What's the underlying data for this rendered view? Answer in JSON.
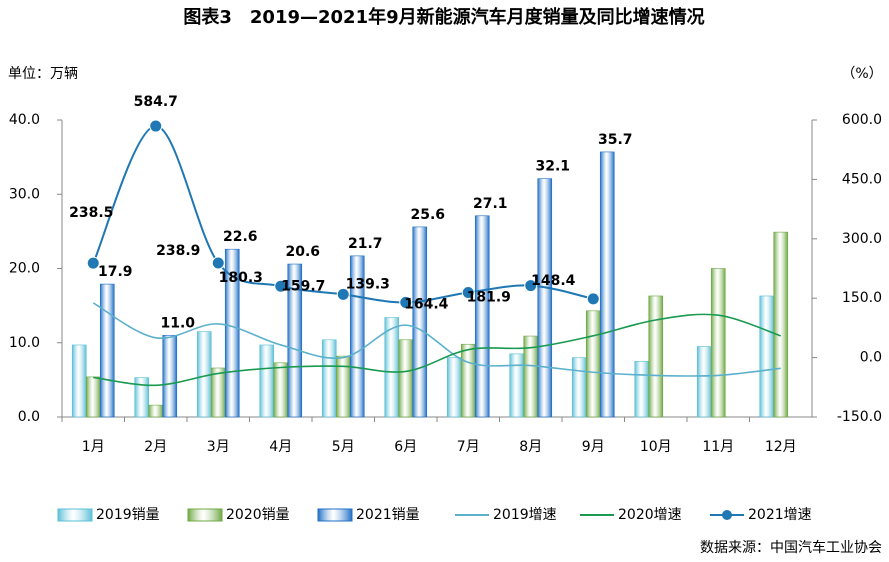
{
  "chart_data": {
    "type": "bar-line",
    "title": "图表3　2019—2021年9月新能源汽车月度销量及同比增速情况",
    "y_label": "单位：万辆",
    "y2_label": "（%）",
    "source": "数据来源：中国汽车工业协会",
    "categories": [
      "1月",
      "2月",
      "3月",
      "4月",
      "5月",
      "6月",
      "7月",
      "8月",
      "9月",
      "10月",
      "11月",
      "12月"
    ],
    "ylim": [
      0,
      40
    ],
    "yticks": [
      {
        "value": 0,
        "label": "0.0"
      },
      {
        "value": 10,
        "label": "10.0"
      },
      {
        "value": 20,
        "label": "20.0"
      },
      {
        "value": 30,
        "label": "30.0"
      },
      {
        "value": 40,
        "label": "40.0"
      }
    ],
    "y2lim": [
      -150,
      600
    ],
    "y2ticks": [
      {
        "value": -150,
        "label": "-150.0"
      },
      {
        "value": 0,
        "label": "0.0"
      },
      {
        "value": 150,
        "label": "150.0"
      },
      {
        "value": 300,
        "label": "300.0"
      },
      {
        "value": 450,
        "label": "450.0"
      },
      {
        "value": 600,
        "label": "600.0"
      }
    ],
    "series": [
      {
        "name": "2019销量",
        "kind": "bar",
        "color": "#5bbfd6",
        "values": [
          9.7,
          5.3,
          11.5,
          9.7,
          10.4,
          13.4,
          8.0,
          8.5,
          8.0,
          7.5,
          9.5,
          16.3
        ]
      },
      {
        "name": "2020销量",
        "kind": "bar",
        "color": "#6fa843",
        "values": [
          5.4,
          1.6,
          6.6,
          7.3,
          8.2,
          10.4,
          9.8,
          10.9,
          14.3,
          16.3,
          20.0,
          24.9
        ]
      },
      {
        "name": "2021销量",
        "kind": "bar",
        "color": "#1f6fc5",
        "values": [
          17.9,
          11.0,
          22.6,
          20.6,
          21.7,
          25.6,
          27.1,
          32.1,
          35.7,
          null,
          null,
          null
        ],
        "value_labels": [
          "17.9",
          "11.0",
          "22.6",
          "20.6",
          "21.7",
          "25.6",
          "27.1",
          "32.1",
          "35.7",
          null,
          null,
          null
        ]
      },
      {
        "name": "2019增速",
        "kind": "line",
        "axis": "y2",
        "color": "#5bb0cc",
        "values": [
          138,
          50,
          85,
          32,
          0,
          82,
          -12,
          -20,
          -37,
          -45,
          -45,
          -27
        ]
      },
      {
        "name": "2020增速",
        "kind": "line",
        "axis": "y2",
        "color": "#1a9a50",
        "values": [
          -50,
          -70,
          -40,
          -25,
          -22,
          -35,
          20,
          25,
          55,
          95,
          107,
          55
        ]
      },
      {
        "name": "2021增速",
        "kind": "line",
        "axis": "y2",
        "marker": true,
        "color": "#1f77b4",
        "values": [
          238.5,
          584.7,
          238.9,
          180.3,
          159.7,
          139.3,
          164.4,
          181.9,
          148.4,
          null,
          null,
          null
        ]
      }
    ]
  }
}
